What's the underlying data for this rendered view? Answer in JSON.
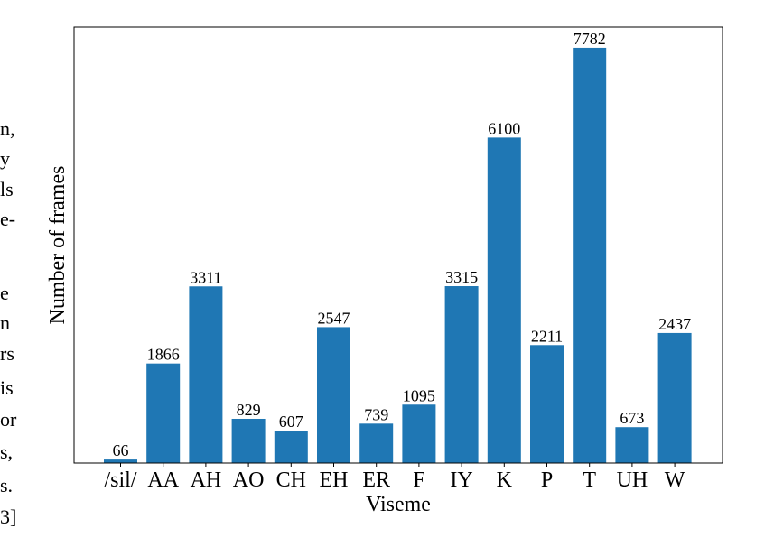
{
  "left_text_fragments": [
    "n,",
    "y",
    "ls",
    "e-",
    "e",
    "n",
    "rs",
    "is",
    "or",
    "s,",
    "s.",
    "3]"
  ],
  "chart_data": {
    "type": "bar",
    "categories": [
      "/sil/",
      "AA",
      "AH",
      "AO",
      "CH",
      "EH",
      "ER",
      "F",
      "IY",
      "K",
      "P",
      "T",
      "UH",
      "W"
    ],
    "values": [
      66,
      1866,
      3311,
      829,
      607,
      2547,
      739,
      1095,
      3315,
      6100,
      2211,
      7782,
      673,
      2437
    ],
    "value_labels": [
      "66",
      "1866",
      "3311",
      "829",
      "607",
      "2547",
      "739",
      "1095",
      "3315",
      "6100",
      "2211",
      "7782",
      "673",
      "2437"
    ],
    "title": "",
    "xlabel": "Viseme",
    "ylabel": "Number of frames",
    "ylim": [
      0,
      8170
    ],
    "y_ticks_shown": false,
    "grid": false,
    "bar_color": "#1f77b4"
  }
}
